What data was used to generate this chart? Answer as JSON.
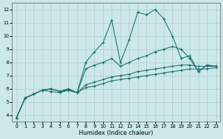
{
  "xlabel": "Humidex (Indice chaleur)",
  "ylabel": "",
  "xlim": [
    -0.5,
    23.5
  ],
  "ylim": [
    3.5,
    12.5
  ],
  "yticks": [
    4,
    5,
    6,
    7,
    8,
    9,
    10,
    11,
    12
  ],
  "xticks": [
    0,
    1,
    2,
    3,
    4,
    5,
    6,
    7,
    8,
    9,
    10,
    11,
    12,
    13,
    14,
    15,
    16,
    17,
    18,
    19,
    20,
    21,
    22,
    23
  ],
  "background_color": "#cce8e8",
  "grid_color": "#b0c8c8",
  "line_color": "#1a7070",
  "lines": [
    {
      "x": [
        0,
        1,
        2,
        3,
        4,
        5,
        6,
        7,
        8,
        9,
        10,
        11,
        12,
        13,
        14,
        15,
        16,
        17,
        18,
        19,
        20,
        21,
        22,
        23
      ],
      "y": [
        3.8,
        5.3,
        5.6,
        5.9,
        6.0,
        5.8,
        6.0,
        5.7,
        8.0,
        8.8,
        9.5,
        11.2,
        8.0,
        9.7,
        11.8,
        11.6,
        12.0,
        11.3,
        10.0,
        8.3,
        8.5,
        7.3,
        7.8,
        7.7
      ]
    },
    {
      "x": [
        0,
        1,
        2,
        3,
        4,
        5,
        6,
        7,
        8,
        9,
        10,
        11,
        12,
        13,
        14,
        15,
        16,
        17,
        18,
        19,
        20,
        21,
        22,
        23
      ],
      "y": [
        3.8,
        5.3,
        5.6,
        5.9,
        6.0,
        5.8,
        6.0,
        5.7,
        7.5,
        7.8,
        8.0,
        8.3,
        7.7,
        8.0,
        8.3,
        8.5,
        8.8,
        9.0,
        9.2,
        9.0,
        8.3,
        7.3,
        7.8,
        7.7
      ]
    },
    {
      "x": [
        0,
        1,
        2,
        3,
        4,
        5,
        6,
        7,
        8,
        9,
        10,
        11,
        12,
        13,
        14,
        15,
        16,
        17,
        18,
        19,
        20,
        21,
        22,
        23
      ],
      "y": [
        3.8,
        5.3,
        5.6,
        5.9,
        6.0,
        5.8,
        5.9,
        5.7,
        6.3,
        6.5,
        6.7,
        6.9,
        7.0,
        7.1,
        7.3,
        7.4,
        7.5,
        7.6,
        7.7,
        7.8,
        7.8,
        7.7,
        7.7,
        7.7
      ]
    },
    {
      "x": [
        0,
        1,
        2,
        3,
        4,
        5,
        6,
        7,
        8,
        9,
        10,
        11,
        12,
        13,
        14,
        15,
        16,
        17,
        18,
        19,
        20,
        21,
        22,
        23
      ],
      "y": [
        3.8,
        5.3,
        5.6,
        5.9,
        5.8,
        5.7,
        5.9,
        5.7,
        6.1,
        6.2,
        6.4,
        6.6,
        6.7,
        6.8,
        6.9,
        7.0,
        7.1,
        7.2,
        7.3,
        7.4,
        7.5,
        7.5,
        7.5,
        7.6
      ]
    }
  ]
}
